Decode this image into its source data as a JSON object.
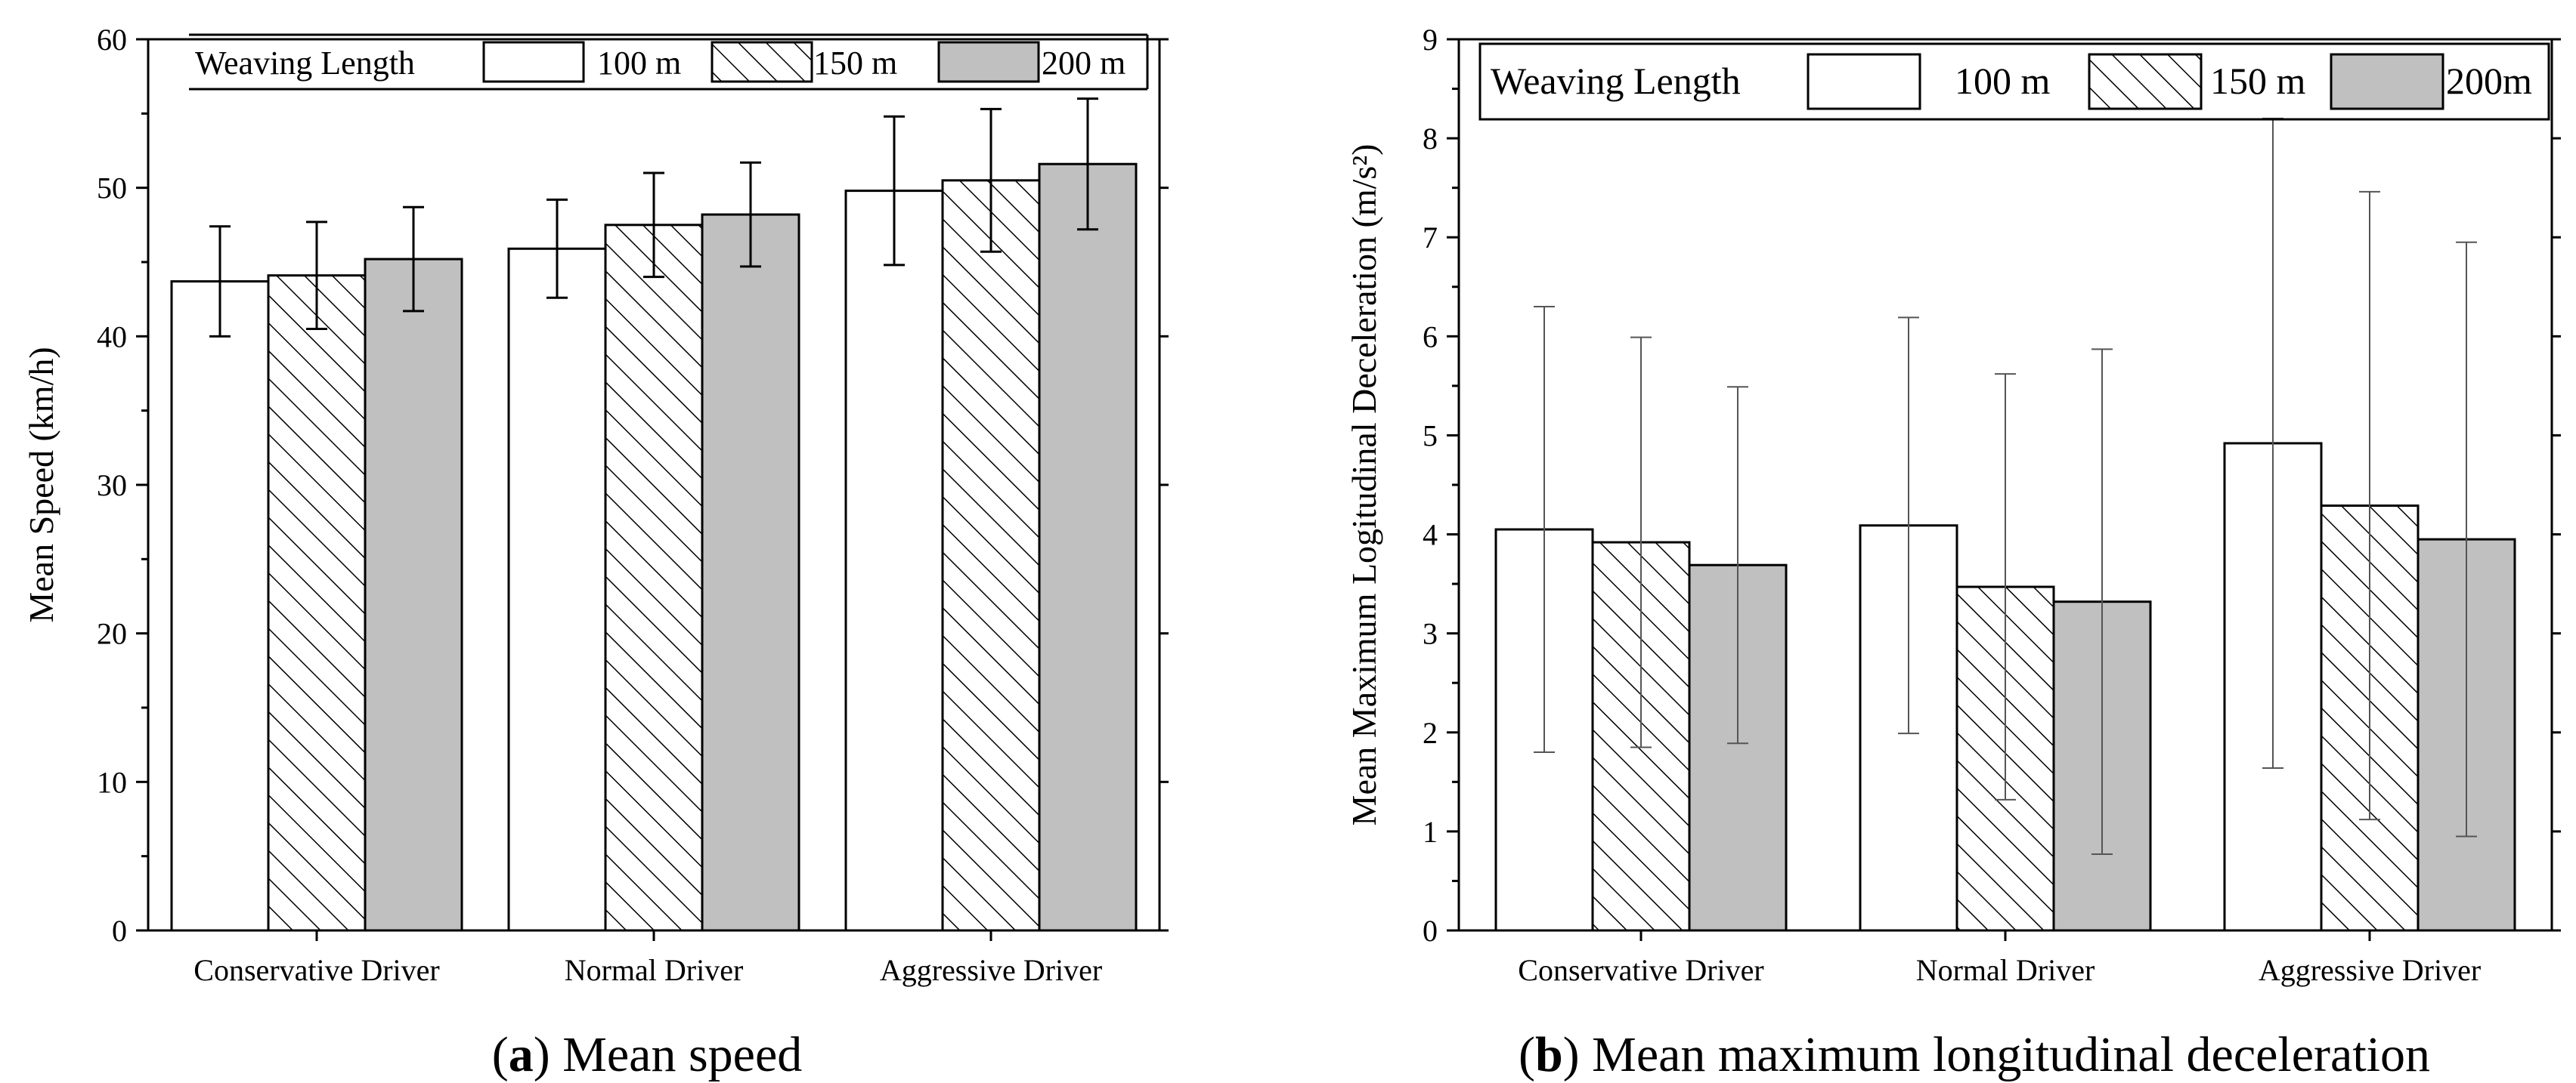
{
  "captions": [
    {
      "label": "a",
      "text": "Mean speed"
    },
    {
      "label": "b",
      "text": "Mean maximum longitudinal deceleration"
    }
  ],
  "colors": {
    "series_100": "#ffffff",
    "series_150": "hatch",
    "series_200": "#c0c0c0",
    "axis": "#000000"
  },
  "chart_data": [
    {
      "type": "bar",
      "title": "",
      "xlabel": "",
      "ylabel": "Mean Speed (km/h)",
      "ylim": [
        0,
        60
      ],
      "yticks": [
        0,
        10,
        20,
        30,
        40,
        50,
        60
      ],
      "categories": [
        "Conservative Driver",
        "Normal Driver",
        "Aggressive Driver"
      ],
      "legend_title": "Weaving Length",
      "legend_position": "top",
      "series": [
        {
          "name": "100 m",
          "values": [
            43.7,
            45.9,
            49.8
          ],
          "errors": [
            3.7,
            3.3,
            5.0
          ]
        },
        {
          "name": "150 m",
          "values": [
            44.1,
            47.5,
            50.5
          ],
          "errors": [
            3.6,
            3.5,
            4.8
          ]
        },
        {
          "name": "200 m",
          "values": [
            45.2,
            48.2,
            51.6
          ],
          "errors": [
            3.5,
            3.5,
            4.4
          ]
        }
      ]
    },
    {
      "type": "bar",
      "title": "",
      "xlabel": "",
      "ylabel": "Mean Maximum Logitudinal Deceleration (m/s²)",
      "ylim": [
        0,
        9
      ],
      "yticks": [
        0,
        1,
        2,
        3,
        4,
        5,
        6,
        7,
        8,
        9
      ],
      "categories": [
        "Conservative Driver",
        "Normal Driver",
        "Aggressive Driver"
      ],
      "legend_title": "Weaving Length",
      "legend_position": "top",
      "series": [
        {
          "name": "100 m",
          "values": [
            4.05,
            4.09,
            4.92
          ],
          "errors": [
            2.25,
            2.1,
            3.28
          ]
        },
        {
          "name": "150 m",
          "values": [
            3.92,
            3.47,
            4.29
          ],
          "errors": [
            2.07,
            2.15,
            3.17
          ]
        },
        {
          "name": "200m",
          "values": [
            3.69,
            3.32,
            3.95
          ],
          "errors": [
            1.8,
            2.55,
            3.0
          ]
        }
      ]
    }
  ]
}
